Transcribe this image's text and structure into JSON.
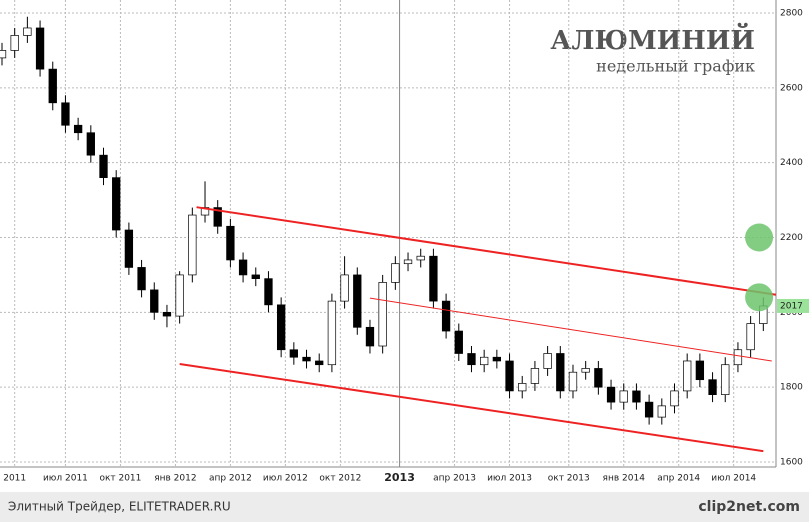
{
  "chart_data": {
    "type": "candlestick",
    "title": "АЛЮМИНИЙ",
    "subtitle": "недельный график",
    "x": [
      0,
      3,
      6,
      9,
      12,
      15,
      18,
      21,
      24,
      27,
      30,
      33,
      36,
      39,
      42,
      45,
      48,
      51,
      54,
      57,
      60,
      63,
      66,
      69,
      72,
      75,
      78,
      81,
      84,
      87,
      90,
      93,
      96,
      99,
      102,
      105,
      108,
      111,
      114,
      117,
      120,
      123,
      126,
      129,
      132,
      135,
      138,
      141,
      144,
      147,
      150,
      153,
      156,
      159,
      162,
      165,
      168,
      171,
      174,
      177,
      180
    ],
    "open": [
      2680,
      2700,
      2740,
      2760,
      2650,
      2560,
      2500,
      2480,
      2420,
      2360,
      2220,
      2120,
      2060,
      2000,
      1990,
      2100,
      2260,
      2280,
      2230,
      2140,
      2100,
      2090,
      2020,
      1900,
      1880,
      1870,
      1860,
      2030,
      2100,
      1960,
      1910,
      2080,
      2130,
      2140,
      2150,
      2030,
      1950,
      1890,
      1860,
      1880,
      1870,
      1790,
      1810,
      1850,
      1890,
      1790,
      1840,
      1850,
      1800,
      1760,
      1790,
      1760,
      1720,
      1750,
      1790,
      1870,
      1820,
      1780,
      1860,
      1900,
      1970
    ],
    "high": [
      2720,
      2760,
      2790,
      2780,
      2670,
      2580,
      2520,
      2500,
      2440,
      2380,
      2240,
      2140,
      2080,
      2020,
      2110,
      2280,
      2350,
      2300,
      2250,
      2160,
      2120,
      2110,
      2040,
      1920,
      1900,
      1890,
      2050,
      2150,
      2120,
      1980,
      2100,
      2150,
      2160,
      2170,
      2170,
      2050,
      1970,
      1910,
      1900,
      1900,
      1890,
      1830,
      1870,
      1910,
      1910,
      1860,
      1870,
      1870,
      1820,
      1810,
      1810,
      1780,
      1770,
      1810,
      1890,
      1890,
      1840,
      1880,
      1920,
      1990,
      2040
    ],
    "low": [
      2660,
      2680,
      2720,
      2630,
      2540,
      2480,
      2460,
      2400,
      2340,
      2200,
      2100,
      2040,
      1980,
      1960,
      1970,
      2080,
      2240,
      2210,
      2120,
      2080,
      2070,
      2000,
      1880,
      1860,
      1850,
      1840,
      1840,
      2010,
      1940,
      1890,
      1890,
      2060,
      2110,
      2120,
      2010,
      1930,
      1870,
      1840,
      1840,
      1850,
      1770,
      1770,
      1790,
      1830,
      1770,
      1770,
      1820,
      1780,
      1740,
      1740,
      1740,
      1700,
      1700,
      1730,
      1770,
      1800,
      1760,
      1760,
      1840,
      1880,
      1950
    ],
    "close": [
      2700,
      2740,
      2760,
      2650,
      2560,
      2500,
      2480,
      2420,
      2360,
      2220,
      2120,
      2060,
      2000,
      1990,
      2100,
      2260,
      2280,
      2230,
      2140,
      2100,
      2090,
      2020,
      1900,
      1880,
      1870,
      1860,
      2030,
      2100,
      1960,
      1910,
      2080,
      2130,
      2140,
      2150,
      2030,
      1950,
      1890,
      1860,
      1880,
      1870,
      1790,
      1810,
      1850,
      1890,
      1790,
      1840,
      1850,
      1800,
      1760,
      1790,
      1760,
      1720,
      1750,
      1790,
      1870,
      1820,
      1780,
      1860,
      1900,
      1970,
      2017
    ],
    "xlim": [
      0,
      183
    ],
    "xticks": [
      {
        "value": 3,
        "label": "2011"
      },
      {
        "value": 15,
        "label": "июл 2011"
      },
      {
        "value": 28,
        "label": "окт 2011"
      },
      {
        "value": 41,
        "label": "янв 2012"
      },
      {
        "value": 54,
        "label": "апр 2012"
      },
      {
        "value": 67,
        "label": "июл 2012"
      },
      {
        "value": 80,
        "label": "окт 2012"
      },
      {
        "value": 94,
        "label": "2013"
      },
      {
        "value": 107,
        "label": "апр 2013"
      },
      {
        "value": 120,
        "label": "июл 2013"
      },
      {
        "value": 134,
        "label": "окт 2013"
      },
      {
        "value": 147,
        "label": "янв 2014"
      },
      {
        "value": 160,
        "label": "апр 2014"
      },
      {
        "value": 173,
        "label": "июл 2014"
      }
    ],
    "ylim": [
      1600,
      2800
    ],
    "yticks": [
      1600,
      1800,
      2000,
      2200,
      2400,
      2600,
      2800
    ],
    "grid": true,
    "up_color": "#ffffff",
    "down_color": "#000000",
    "trend_lines": [
      {
        "x": [
          46,
          183
        ],
        "values": [
          2281,
          2047
        ],
        "color": "#ee2222",
        "width": 2
      },
      {
        "x": [
          87,
          182
        ],
        "values": [
          2038,
          1870
        ],
        "color": "#ee2222",
        "width": 1
      },
      {
        "x": [
          42,
          180
        ],
        "values": [
          1862,
          1629
        ],
        "color": "#ee2222",
        "width": 2
      }
    ],
    "markers": [
      {
        "x": 179,
        "value": 2200,
        "color": "#6cc46c"
      },
      {
        "x": 179,
        "value": 2040,
        "color": "#6cc46c"
      }
    ],
    "footer": "Элитный Трейдер, ELITETRADER.RU",
    "logo": "clip2net.com"
  }
}
